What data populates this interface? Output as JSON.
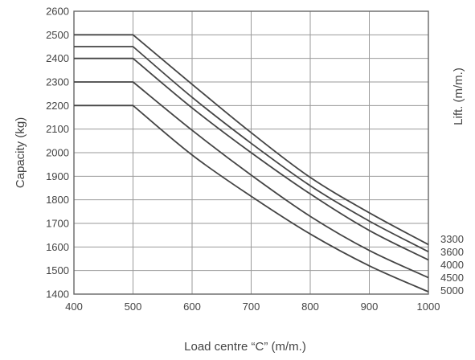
{
  "chart_data": {
    "type": "line",
    "xlabel": "Load centre “C” (m/m.)",
    "ylabel": "Capacity (kg)",
    "y2label": "Lift. (m/m.)",
    "xlim": [
      400,
      1000
    ],
    "ylim": [
      1400,
      2600
    ],
    "xticks": [
      400,
      500,
      600,
      700,
      800,
      900,
      1000
    ],
    "yticks": [
      1400,
      1500,
      1600,
      1700,
      1800,
      1900,
      2000,
      2100,
      2200,
      2300,
      2400,
      2500,
      2600
    ],
    "grid": true,
    "series": [
      {
        "name": "3300",
        "x": [
          400,
          500,
          600,
          700,
          800,
          900,
          1000
        ],
        "y": [
          2500,
          2500,
          2290,
          2085,
          1895,
          1745,
          1610
        ]
      },
      {
        "name": "3600",
        "x": [
          400,
          500,
          600,
          700,
          800,
          900,
          1000
        ],
        "y": [
          2450,
          2450,
          2235,
          2040,
          1860,
          1710,
          1580
        ]
      },
      {
        "name": "4000",
        "x": [
          400,
          500,
          600,
          700,
          800,
          900,
          1000
        ],
        "y": [
          2400,
          2400,
          2190,
          2000,
          1825,
          1670,
          1545
        ]
      },
      {
        "name": "4500",
        "x": [
          400,
          500,
          600,
          700,
          800,
          900,
          1000
        ],
        "y": [
          2300,
          2300,
          2095,
          1905,
          1730,
          1585,
          1470
        ]
      },
      {
        "name": "5000",
        "x": [
          400,
          500,
          600,
          700,
          800,
          900,
          1000
        ],
        "y": [
          2200,
          2200,
          1990,
          1815,
          1655,
          1520,
          1410
        ]
      }
    ]
  }
}
